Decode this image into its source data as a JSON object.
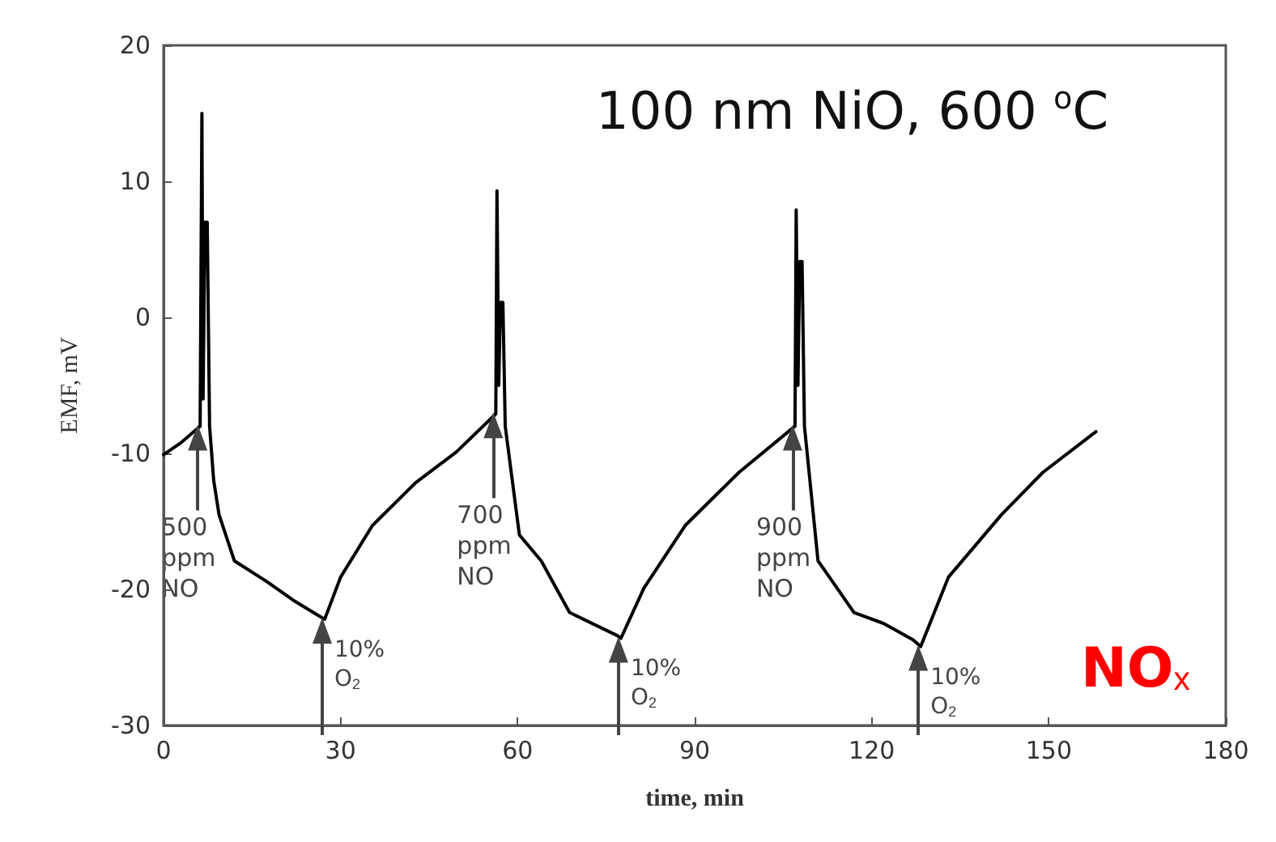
{
  "chart_data": {
    "type": "line",
    "title": "100 nm NiO, 600 $^{o}$C",
    "xlabel": "time, min",
    "ylabel": "EMF, mV",
    "xlim": [
      0,
      180
    ],
    "xticks": [
      0,
      30,
      60,
      90,
      120,
      150,
      180
    ],
    "ylim": [
      -30,
      20
    ],
    "yticks": [
      -30,
      -20,
      -10,
      0,
      10,
      20
    ],
    "grid": false,
    "marker": "none",
    "line_style": "solid",
    "series": [
      {
        "color": "#000000",
        "x": [
          0,
          3,
          6.2,
          6.5,
          6.7,
          7.0,
          7.4,
          7.8,
          8.5,
          9.4,
          12,
          17.4,
          22,
          27.3,
          30,
          35.4,
          42.6,
          49.6,
          56.3,
          56.5,
          56.8,
          57.1,
          57.5,
          57.9,
          60.3,
          64,
          68.8,
          76.9,
          77.5,
          81.4,
          88.4,
          97.5,
          107,
          107.2,
          107.5,
          107.8,
          108.2,
          108.6,
          110.9,
          117,
          122,
          127,
          128.3,
          133,
          142,
          149,
          158
        ],
        "values": [
          -10.1,
          -9.2,
          -8,
          15,
          -6,
          7,
          7,
          -8,
          -12,
          -14.5,
          -17.9,
          -19.4,
          -20.8,
          -22.2,
          -19.1,
          -15.3,
          -12.2,
          -9.9,
          -7.1,
          9.3,
          -5,
          1.1,
          1.1,
          -8,
          -16,
          -17.9,
          -21.7,
          -23.4,
          -23.6,
          -19.9,
          -15.3,
          -11.4,
          -8,
          7.9,
          -5,
          4.1,
          4.1,
          -8,
          -17.9,
          -21.7,
          -22.5,
          -23.7,
          -24.2,
          -19.1,
          -14.5,
          -11.4,
          -8.4
        ]
      }
    ],
    "annotations": [
      {
        "text": "500 ppm NO",
        "x": 6.2,
        "y": -8
      },
      {
        "text": "10% O$_{2}$",
        "x": 27.3,
        "y": -22.2
      },
      {
        "text": "700 ppm NO",
        "x": 56.3,
        "y": -7.1
      },
      {
        "text": "10% O$_{2}$",
        "x": 77.5,
        "y": -23.6
      },
      {
        "text": "900 ppm NO",
        "x": 107,
        "y": -8
      },
      {
        "text": "10% O$_{2}$",
        "x": 128.3,
        "y": -24.2
      },
      "NO$_{x}$"
    ]
  }
}
